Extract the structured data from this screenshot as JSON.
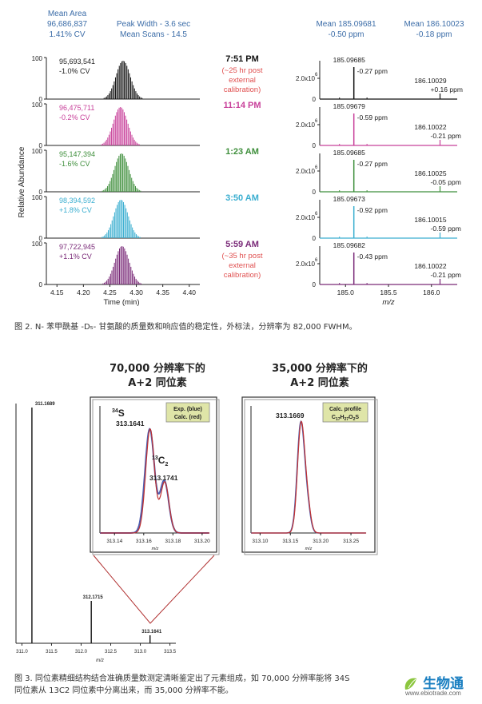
{
  "figure2": {
    "header": {
      "mean_area_label": "Mean Area",
      "mean_area_value": "96,686,837",
      "mean_area_cv": "1.41% CV",
      "peak_width": "Peak Width - 3.6 sec",
      "mean_scans": "Mean Scans - 14.5",
      "mean1_label": "Mean 185.09681",
      "mean1_ppm": "-0.50 ppm",
      "mean2_label": "Mean 186.10023",
      "mean2_ppm": "-0.18 ppm"
    },
    "y_label": "Relative Abundance",
    "x_label_left": "Time (min)",
    "x_label_right": "m/z",
    "x_ticks_left": [
      "4.15",
      "4.20",
      "4.25",
      "4.30",
      "4.35",
      "4.40"
    ],
    "x_ticks_right": [
      "185.0",
      "185.5",
      "186.0"
    ],
    "y_tick_top": "100",
    "y_tick_bottom": "0",
    "ms_y_tick_top": "2.0x10",
    "ms_y_tick_exp": "6",
    "rows": [
      {
        "area": "95,693,541",
        "cv": "-1.0% CV",
        "time": "7:51 PM",
        "note": [
          "(~25 hr post",
          "external",
          "calibration)"
        ],
        "color": "#111111",
        "time_color": "#111111",
        "note_color": "#e05050",
        "peak1": "185.09685",
        "ppm1": "-0.27 ppm",
        "peak2": "186.10029",
        "ppm2": "+0.16 ppm"
      },
      {
        "area": "96,475,711",
        "cv": "-0.2% CV",
        "time": "11:14 PM",
        "note": [],
        "color": "#c8409a",
        "time_color": "#c8409a",
        "note_color": "#c8409a",
        "peak1": "185.09679",
        "ppm1": "-0.59 ppm",
        "peak2": "186.10022",
        "ppm2": "-0.21 ppm"
      },
      {
        "area": "95,147,394",
        "cv": "-1.6% CV",
        "time": "1:23 AM",
        "note": [],
        "color": "#3f8f3c",
        "time_color": "#3f8f3c",
        "note_color": "#3f8f3c",
        "peak1": "185.09685",
        "ppm1": "-0.27 ppm",
        "peak2": "186.10025",
        "ppm2": "-0.05 ppm"
      },
      {
        "area": "98,394,592",
        "cv": "+1.8% CV",
        "time": "3:50 AM",
        "note": [],
        "color": "#3aaed0",
        "time_color": "#3aaed0",
        "note_color": "#3aaed0",
        "peak1": "185.09673",
        "ppm1": "-0.92 ppm",
        "peak2": "186.10015",
        "ppm2": "-0.59 ppm"
      },
      {
        "area": "97,722,945",
        "cv": "+1.1% CV",
        "time": "5:59 AM",
        "note": [
          "(~35 hr post",
          "external",
          "calibration)"
        ],
        "color": "#7a2a78",
        "time_color": "#7a2a78",
        "note_color": "#e05050",
        "peak1": "185.09682",
        "ppm1": "-0.43 ppm",
        "peak2": "186.10022",
        "ppm2": "-0.21 ppm"
      }
    ],
    "caption": "图 2. N- 苯甲酰基 -D₅- 甘氨酸的质量数和响应值的稳定性，外标法，分辨率为 82,000 FWHM。"
  },
  "figure3": {
    "title_left_1": "70,000 分辨率下的",
    "title_left_2": "A+2 同位素",
    "title_right_1": "35,000 分辨率下的",
    "title_right_2": "A+2 同位素",
    "main_peak1": "311.1689",
    "main_peak2": "312.1715",
    "main_peak3": "313.1641",
    "main_x_ticks": [
      "311.0",
      "311.5",
      "312.0",
      "312.5",
      "313.0",
      "313.5"
    ],
    "main_x_label": "m/z",
    "inset1": {
      "label_s": "34S",
      "label_s_mass": "313.1641",
      "label_c": "13C2",
      "label_c_mass": "313.1741",
      "legend_1": "Exp. (blue)",
      "legend_2": "Calc. (red)",
      "x_ticks": [
        "313.14",
        "313.16",
        "313.18",
        "313.20"
      ],
      "x_label": "m/z"
    },
    "inset2": {
      "peak": "313.1669",
      "legend_1": "Calc. profile",
      "legend_2": "C17H27O2S",
      "x_ticks": [
        "313.10",
        "313.15",
        "313.20",
        "313.25"
      ],
      "x_label": "m/z"
    },
    "caption_line1": "图 3. 同位素精细结构结合准确质量数测定清晰鉴定出了元素组成，如 70,000 分辨率能将 34S",
    "caption_line2": "同位素从 13C2 同位素中分离出来，而 35,000 分辨率不能。"
  },
  "logo": {
    "brand": "生物通",
    "url": "www.ebiotrade.com"
  }
}
